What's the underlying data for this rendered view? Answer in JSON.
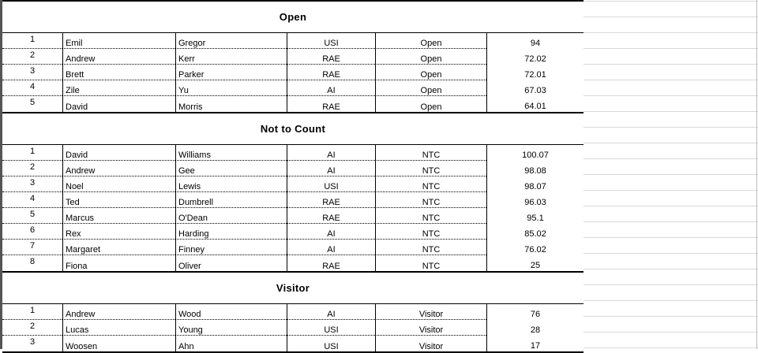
{
  "sections": [
    {
      "title": "Open",
      "rows": [
        {
          "rank": "1",
          "first": "Emil",
          "last": "Gregor",
          "club": "USI",
          "class": "Open",
          "score": "94"
        },
        {
          "rank": "2",
          "first": "Andrew",
          "last": "Kerr",
          "club": "RAE",
          "class": "Open",
          "score": "72.02"
        },
        {
          "rank": "3",
          "first": "Brett",
          "last": "Parker",
          "club": "RAE",
          "class": "Open",
          "score": "72.01"
        },
        {
          "rank": "4",
          "first": "Zile",
          "last": "Yu",
          "club": "AI",
          "class": "Open",
          "score": "67.03"
        },
        {
          "rank": "5",
          "first": "David",
          "last": "Morris",
          "club": "RAE",
          "class": "Open",
          "score": "64.01"
        }
      ]
    },
    {
      "title": "Not to Count",
      "rows": [
        {
          "rank": "1",
          "first": "David",
          "last": "Williams",
          "club": "AI",
          "class": "NTC",
          "score": "100.07"
        },
        {
          "rank": "2",
          "first": "Andrew",
          "last": "Gee",
          "club": "AI",
          "class": "NTC",
          "score": "98.08"
        },
        {
          "rank": "3",
          "first": "Noel",
          "last": "Lewis",
          "club": "USI",
          "class": "NTC",
          "score": "98.07"
        },
        {
          "rank": "4",
          "first": "Ted",
          "last": "Dumbrell",
          "club": "RAE",
          "class": "NTC",
          "score": "96.03"
        },
        {
          "rank": "5",
          "first": "Marcus",
          "last": "O'Dean",
          "club": "RAE",
          "class": "NTC",
          "score": "95.1"
        },
        {
          "rank": "6",
          "first": "Rex",
          "last": "Harding",
          "club": "AI",
          "class": "NTC",
          "score": "85.02"
        },
        {
          "rank": "7",
          "first": "Margaret",
          "last": "Finney",
          "club": "AI",
          "class": "NTC",
          "score": "76.02"
        },
        {
          "rank": "8",
          "first": "Fiona",
          "last": "Oliver",
          "club": "RAE",
          "class": "NTC",
          "score": "25"
        }
      ]
    },
    {
      "title": "Visitor",
      "rows": [
        {
          "rank": "1",
          "first": "Andrew",
          "last": "Wood",
          "club": "AI",
          "class": "Visitor",
          "score": "76"
        },
        {
          "rank": "2",
          "first": "Lucas",
          "last": "Young",
          "club": "USI",
          "class": "Visitor",
          "score": "28"
        },
        {
          "rank": "3",
          "first": "Woosen",
          "last": "Ahn",
          "club": "USI",
          "class": "Visitor",
          "score": "17"
        }
      ]
    }
  ]
}
